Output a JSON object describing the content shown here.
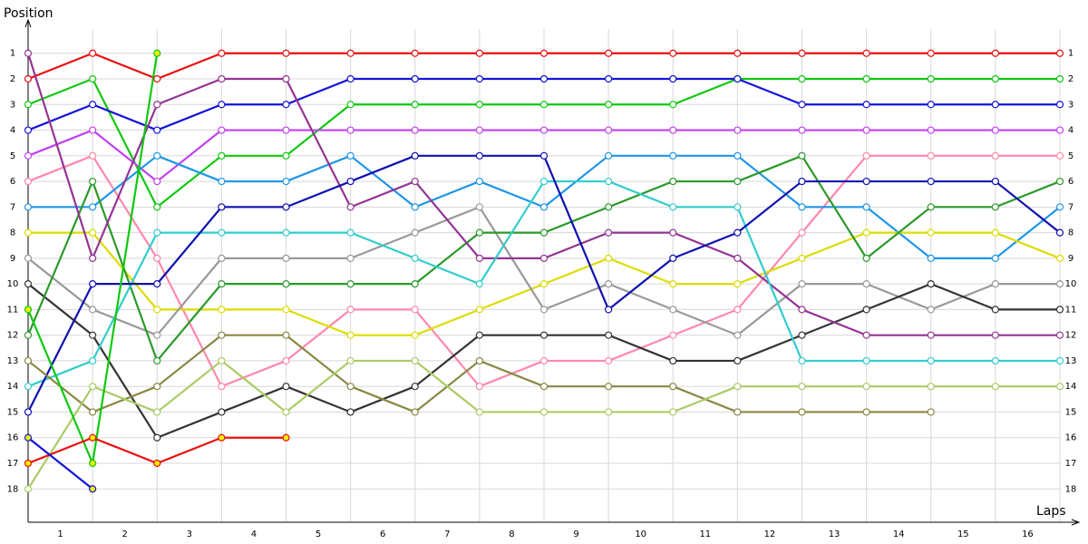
{
  "chart_data": {
    "type": "lapchart",
    "y_label": "Position",
    "x_label": "Laps",
    "xlim": [
      0,
      16
    ],
    "xticks": [
      {
        "value": 0.5,
        "label": "1"
      },
      {
        "value": 1.5,
        "label": "2"
      },
      {
        "value": 2.5,
        "label": "3"
      },
      {
        "value": 3.5,
        "label": "4"
      },
      {
        "value": 4.5,
        "label": "5"
      },
      {
        "value": 5.5,
        "label": "6"
      },
      {
        "value": 6.5,
        "label": "7"
      },
      {
        "value": 7.5,
        "label": "8"
      },
      {
        "value": 8.5,
        "label": "9"
      },
      {
        "value": 9.5,
        "label": "10"
      },
      {
        "value": 10.5,
        "label": "11"
      },
      {
        "value": 11.5,
        "label": "12"
      },
      {
        "value": 12.5,
        "label": "13"
      },
      {
        "value": 13.5,
        "label": "14"
      },
      {
        "value": 14.5,
        "label": "15"
      },
      {
        "value": 15.5,
        "label": "16"
      }
    ],
    "ylim": [
      19.3,
      -0.3
    ],
    "yticks": [
      1,
      2,
      3,
      4,
      5,
      6,
      7,
      8,
      9,
      10,
      11,
      12,
      13,
      14,
      15,
      16,
      17,
      18
    ],
    "grid": true,
    "series": [
      {
        "color": "#e81010",
        "marker_color": "#ffffff",
        "values": [
          2,
          1,
          2,
          1,
          1,
          1,
          1,
          1,
          1,
          1,
          1,
          1,
          1,
          1,
          1,
          1,
          1
        ]
      },
      {
        "color": "#10c810",
        "marker_color": "#ffffff",
        "values": [
          3,
          2,
          7,
          5,
          5,
          3,
          3,
          3,
          3,
          3,
          3,
          2,
          2,
          2,
          2,
          2,
          2
        ]
      },
      {
        "color": "#1414d8",
        "marker_color": "#ffffff",
        "values": [
          4,
          3,
          4,
          3,
          3,
          2,
          2,
          2,
          2,
          2,
          2,
          2,
          3,
          3,
          3,
          3,
          3
        ]
      },
      {
        "color": "#c040f0",
        "marker_color": "#ffffff",
        "values": [
          5,
          4,
          6,
          4,
          4,
          4,
          4,
          4,
          4,
          4,
          4,
          4,
          4,
          4,
          4,
          4,
          4
        ]
      },
      {
        "color": "#ff88aa",
        "marker_color": "#ffffff",
        "values": [
          6,
          5,
          9,
          14,
          13,
          11,
          11,
          14,
          13,
          13,
          12,
          11,
          8,
          5,
          5,
          5,
          5
        ]
      },
      {
        "color": "#1e96e8",
        "marker_color": "#ffffff",
        "values": [
          7,
          7,
          5,
          6,
          6,
          5,
          7,
          6,
          7,
          5,
          5,
          5,
          7,
          7,
          9,
          9,
          7
        ]
      },
      {
        "color": "#dcdc00",
        "marker_color": "#ffffff",
        "values": [
          8,
          8,
          11,
          11,
          11,
          12,
          12,
          11,
          10,
          9,
          10,
          10,
          9,
          8,
          8,
          8,
          9
        ]
      },
      {
        "color": "#999999",
        "marker_color": "#ffffff",
        "values": [
          9,
          11,
          12,
          9,
          9,
          9,
          8,
          7,
          11,
          10,
          11,
          12,
          10,
          10,
          11,
          10,
          10
        ]
      },
      {
        "color": "#333333",
        "marker_color": "#ffffff",
        "values": [
          10,
          12,
          16,
          15,
          14,
          15,
          14,
          12,
          12,
          12,
          13,
          13,
          12,
          11,
          10,
          11,
          11
        ]
      },
      {
        "color": "#2a9a2a",
        "marker_color": "#ffffff",
        "values": [
          12,
          6,
          13,
          10,
          10,
          10,
          10,
          8,
          8,
          7,
          6,
          6,
          5,
          9,
          7,
          7,
          6
        ]
      },
      {
        "color": "#943494",
        "marker_color": "#ffffff",
        "values": [
          1,
          9,
          3,
          2,
          2,
          7,
          6,
          9,
          9,
          8,
          8,
          9,
          11,
          12,
          12,
          12,
          12
        ]
      },
      {
        "color": "#33cccc",
        "marker_color": "#ffffff",
        "values": [
          14,
          13,
          8,
          8,
          8,
          8,
          9,
          10,
          6,
          6,
          7,
          7,
          13,
          13,
          13,
          13,
          13
        ]
      },
      {
        "color": "#1010b0",
        "marker_color": "#ffffff",
        "values": [
          15,
          10,
          10,
          7,
          7,
          6,
          5,
          5,
          5,
          11,
          9,
          8,
          6,
          6,
          6,
          6,
          8
        ]
      },
      {
        "color": "#888844",
        "marker_color": "#ffffff",
        "values": [
          13,
          15,
          14,
          12,
          12,
          14,
          15,
          13,
          14,
          14,
          14,
          15,
          15,
          15,
          15,
          null,
          null
        ]
      },
      {
        "color": "#aacc66",
        "marker_color": "#ffffff",
        "values": [
          18,
          14,
          15,
          13,
          15,
          13,
          13,
          15,
          15,
          15,
          15,
          14,
          14,
          14,
          14,
          14,
          14
        ]
      },
      {
        "color": "#10c810",
        "marker_color": "#f0f000",
        "values": [
          11,
          17,
          1,
          null,
          null,
          null,
          null,
          null,
          null,
          null,
          null,
          null,
          null,
          null,
          null,
          null,
          null
        ]
      },
      {
        "color": "#e81010",
        "marker_color": "#f0f000",
        "values": [
          17,
          16,
          17,
          16,
          16,
          null,
          null,
          null,
          null,
          null,
          null,
          null,
          null,
          null,
          null,
          null,
          null
        ]
      },
      {
        "color": "#1414d8",
        "marker_color": "#f0f000",
        "values": [
          16,
          18,
          null,
          null,
          null,
          null,
          null,
          null,
          null,
          null,
          null,
          null,
          null,
          null,
          null,
          null,
          null
        ]
      }
    ]
  }
}
